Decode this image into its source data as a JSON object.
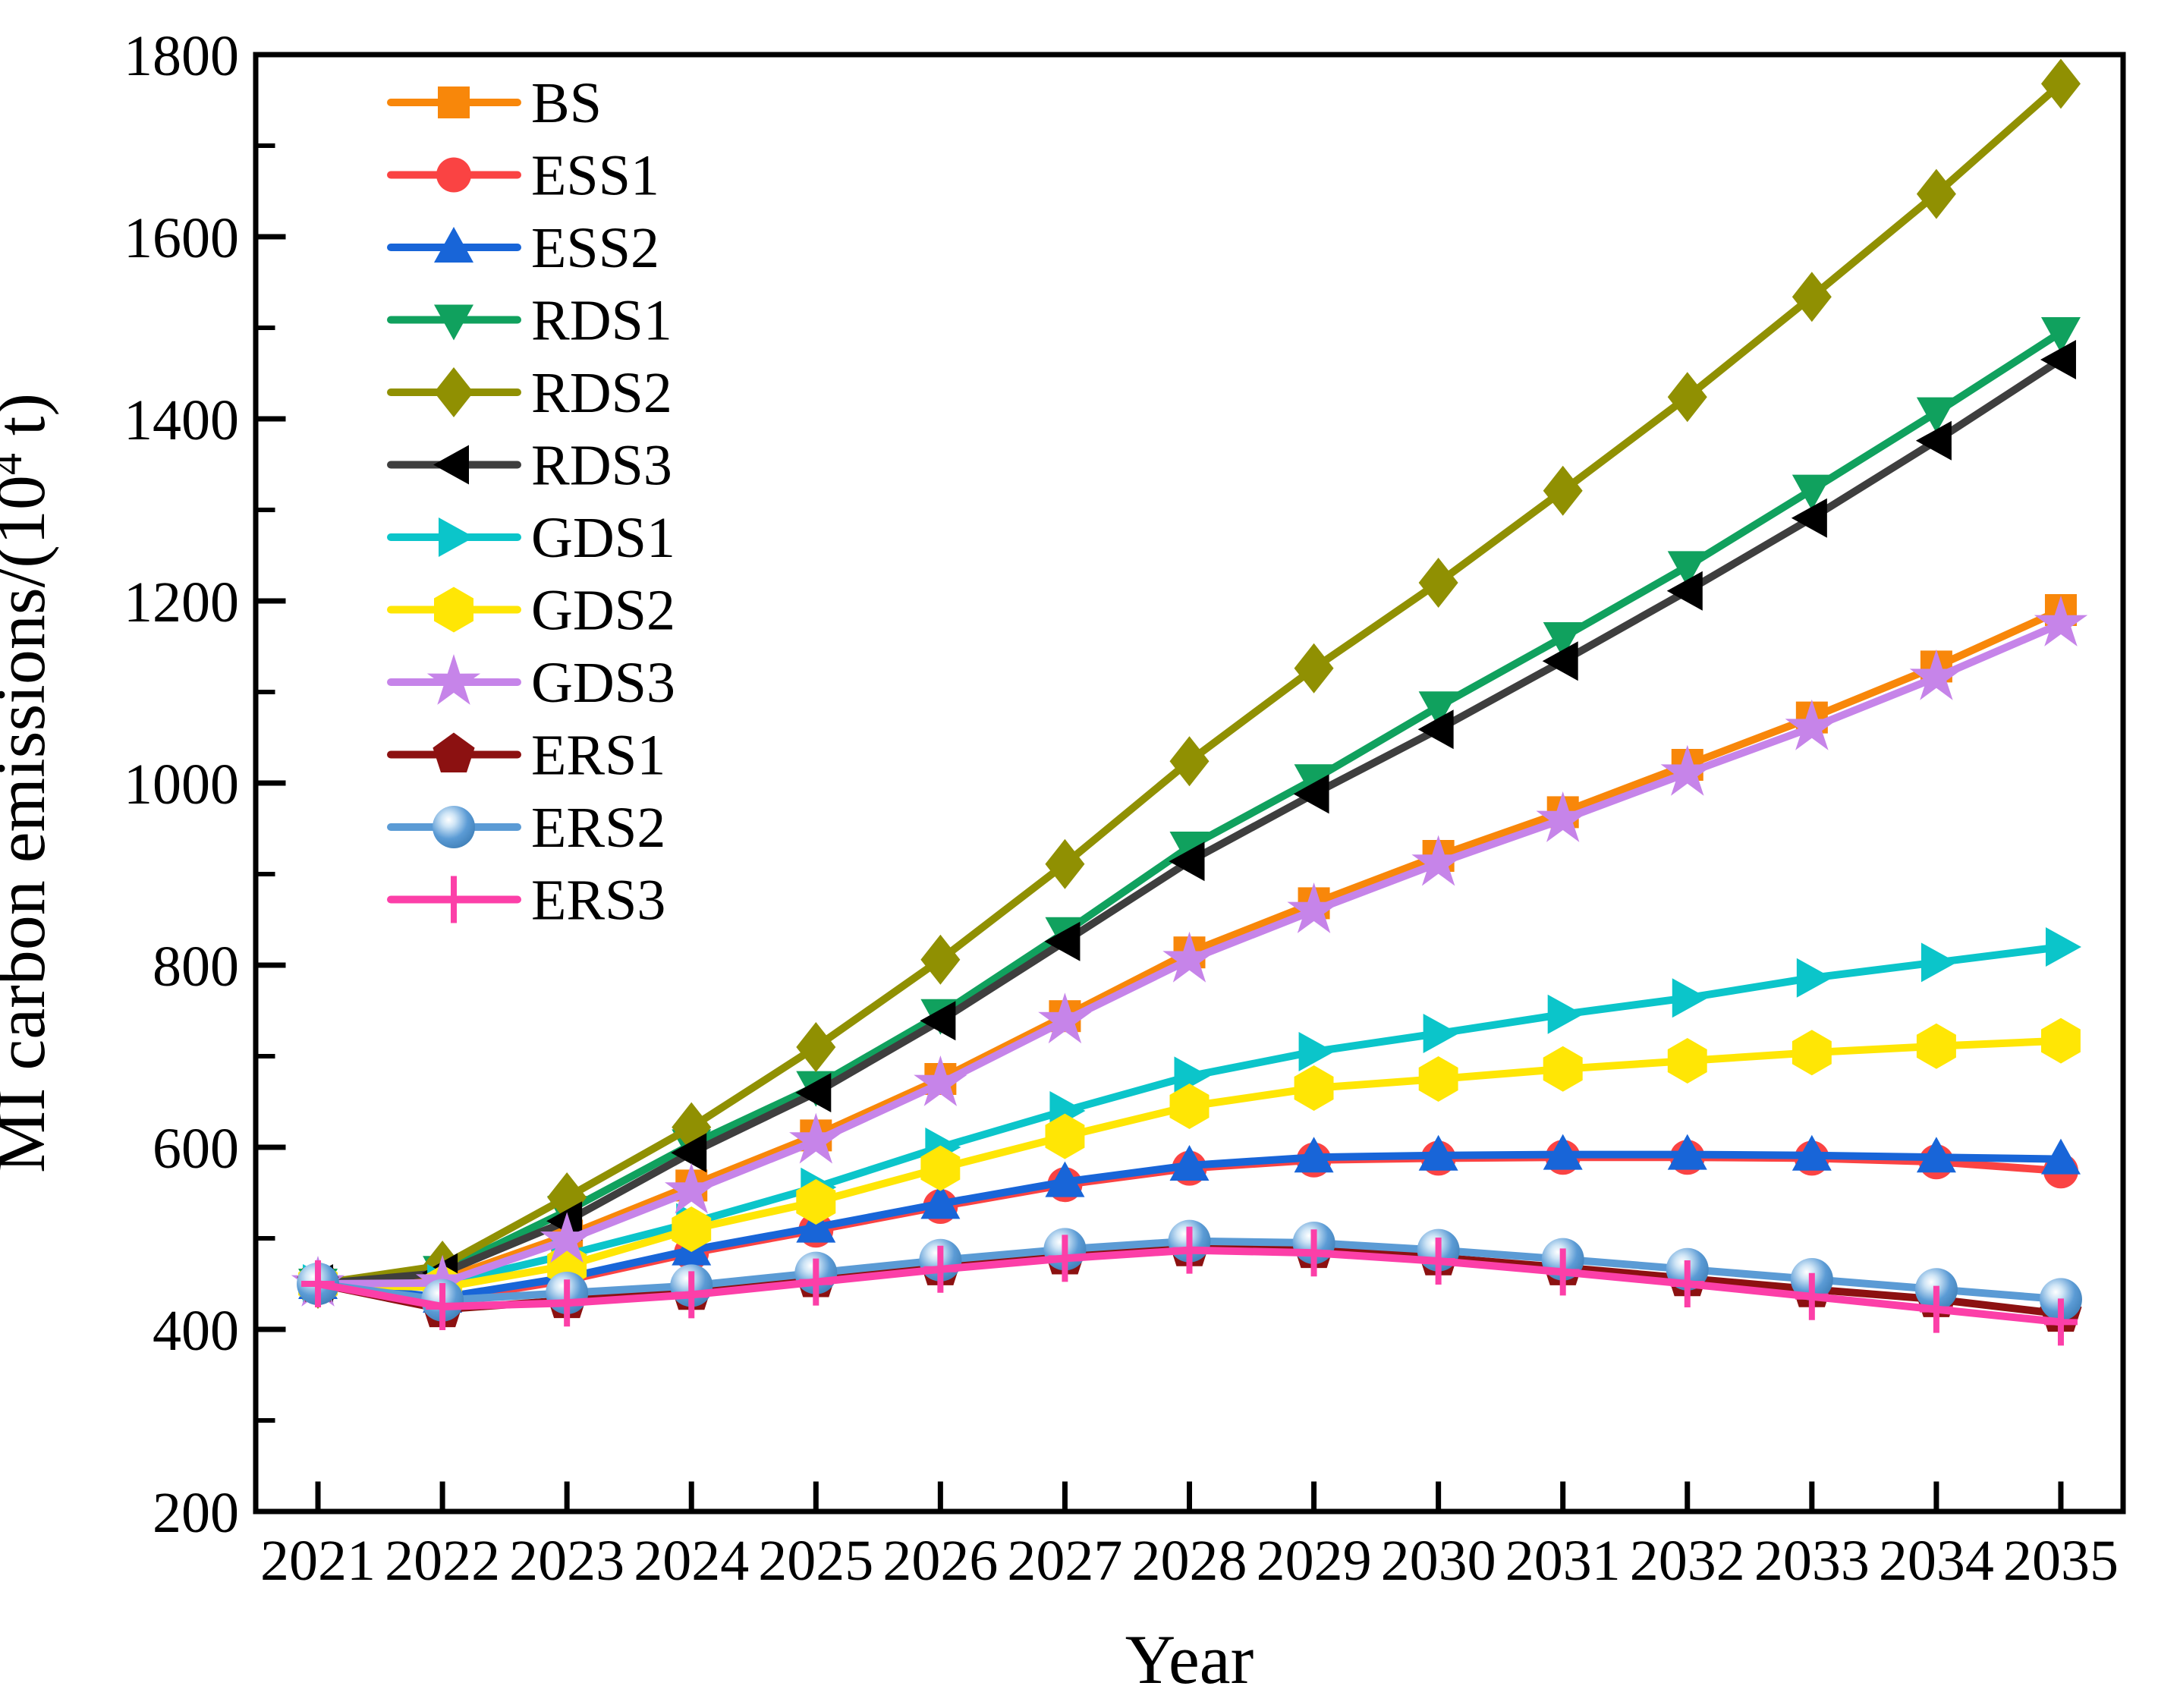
{
  "figure": {
    "background": "#FFFFFF",
    "axis_color": "#000000",
    "text_color": "#000000"
  },
  "chart_data": {
    "type": "line",
    "title": "",
    "xlabel": "Year",
    "ylabel": "MI carbon emissions/(10⁴ t)",
    "ylabel_parts": {
      "prefix": "MI carbon emissions/(10",
      "superscript": "4",
      "suffix": " t)"
    },
    "x": [
      2021,
      2022,
      2023,
      2024,
      2025,
      2026,
      2027,
      2028,
      2029,
      2030,
      2031,
      2032,
      2033,
      2034,
      2035
    ],
    "xlim": [
      2020.5,
      2035.5
    ],
    "ylim": [
      200,
      1800
    ],
    "ytick_major": [
      200,
      400,
      600,
      800,
      1000,
      1200,
      1400,
      1600,
      1800
    ],
    "ytick_minor_step": 100,
    "grid": false,
    "legend_position": "upper left inside",
    "series": [
      {
        "name": "BS",
        "color": "#F8870A",
        "marker": "square",
        "values": [
          450,
          455,
          503,
          558,
          613,
          675,
          744,
          814,
          868,
          920,
          968,
          1020,
          1072,
          1128,
          1190
        ]
      },
      {
        "name": "ESS1",
        "color": "#FA4343",
        "marker": "circle",
        "values": [
          450,
          432,
          454,
          484,
          509,
          535,
          559,
          577,
          586,
          588,
          589,
          589,
          588,
          584,
          574
        ]
      },
      {
        "name": "ESS2",
        "color": "#1865D8",
        "marker": "triangle-up",
        "values": [
          450,
          435,
          457,
          487,
          512,
          538,
          562,
          580,
          589,
          591,
          592,
          592,
          591,
          589,
          587
        ]
      },
      {
        "name": "RDS1",
        "color": "#10A15E",
        "marker": "triangle-down",
        "values": [
          450,
          464,
          530,
          603,
          667,
          746,
          836,
          930,
          1004,
          1084,
          1160,
          1238,
          1322,
          1407,
          1495
        ]
      },
      {
        "name": "RDS2",
        "color": "#909002",
        "marker": "diamond",
        "values": [
          450,
          470,
          545,
          622,
          710,
          806,
          911,
          1024,
          1126,
          1220,
          1321,
          1424,
          1534,
          1647,
          1768
        ]
      },
      {
        "name": "RDS3",
        "color": "#3E3E3E",
        "marker": "triangle-left",
        "marker_color": "#000000",
        "values": [
          450,
          462,
          519,
          594,
          660,
          739,
          826,
          914,
          988,
          1059,
          1134,
          1211,
          1291,
          1376,
          1465
        ]
      },
      {
        "name": "GDS1",
        "color": "#0BC5CA",
        "marker": "triangle-right",
        "values": [
          450,
          450,
          482,
          517,
          556,
          600,
          640,
          678,
          705,
          725,
          746,
          764,
          786,
          803,
          820
        ]
      },
      {
        "name": "GDS2",
        "color": "#FFE605",
        "marker": "hexagon",
        "values": [
          450,
          446,
          470,
          510,
          540,
          577,
          612,
          645,
          665,
          675,
          686,
          695,
          704,
          711,
          717
        ]
      },
      {
        "name": "GDS3",
        "color": "#C684E9",
        "marker": "star",
        "values": [
          450,
          451,
          498,
          552,
          607,
          670,
          739,
          806,
          860,
          912,
          960,
          1011,
          1061,
          1116,
          1175
        ]
      },
      {
        "name": "ERS1",
        "color": "#8C1111",
        "marker": "pentagon",
        "values": [
          450,
          422,
          432,
          441,
          455,
          468,
          480,
          489,
          487,
          479,
          468,
          456,
          444,
          433,
          417
        ]
      },
      {
        "name": "ERS2",
        "color": "#5B9BD5",
        "marker": "sphere",
        "values": [
          450,
          432,
          440,
          448,
          462,
          476,
          488,
          497,
          495,
          487,
          477,
          466,
          455,
          444,
          433
        ]
      },
      {
        "name": "ERS3",
        "color": "#FC3FA8",
        "marker": "plus",
        "values": [
          450,
          425,
          429,
          438,
          452,
          466,
          478,
          487,
          484,
          475,
          463,
          450,
          436,
          422,
          408
        ]
      }
    ]
  }
}
